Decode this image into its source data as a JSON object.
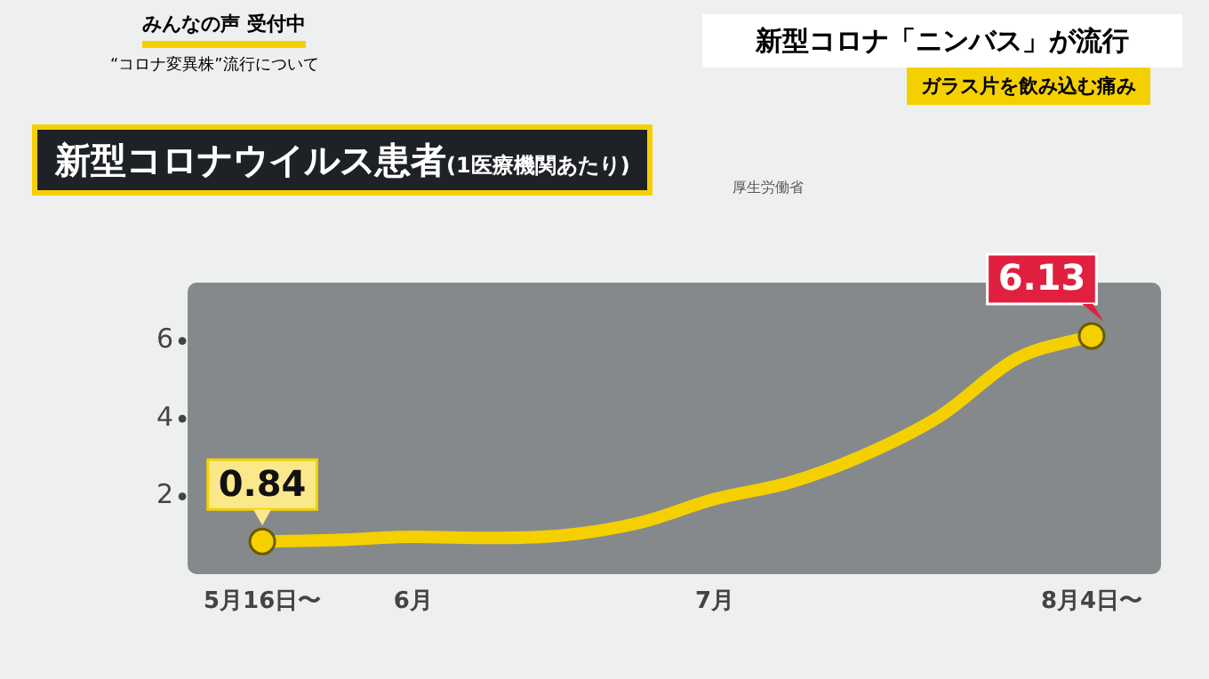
{
  "chart_data": {
    "type": "line",
    "title": "新型コロナウイルス患者",
    "subtitle": "(1医療機関あたり)",
    "annotations": [
      "新型コロナ「ニンバス」が流行",
      "ガラス片を飲み込む痛み",
      "みんなの声 受付中",
      "“コロナ変異株”流行について",
      "厚生労働省"
    ],
    "categories": [
      "5月16日〜",
      null,
      "6月",
      null,
      null,
      null,
      "7月",
      null,
      null,
      null,
      null,
      "8月4日〜"
    ],
    "series": [
      {
        "color": "#f5d000",
        "values": [
          0.84,
          0.88,
          0.96,
          0.93,
          1.0,
          1.32,
          1.93,
          2.36,
          3.08,
          4.08,
          5.54,
          6.13
        ],
        "value_labels": [
          "0.84",
          null,
          null,
          null,
          null,
          null,
          null,
          null,
          null,
          null,
          null,
          "6.13"
        ]
      }
    ],
    "ylim": [
      0,
      7.5
    ],
    "yticks": [
      2,
      4,
      6
    ],
    "grid": false,
    "legend": false,
    "line_style": "solid"
  }
}
